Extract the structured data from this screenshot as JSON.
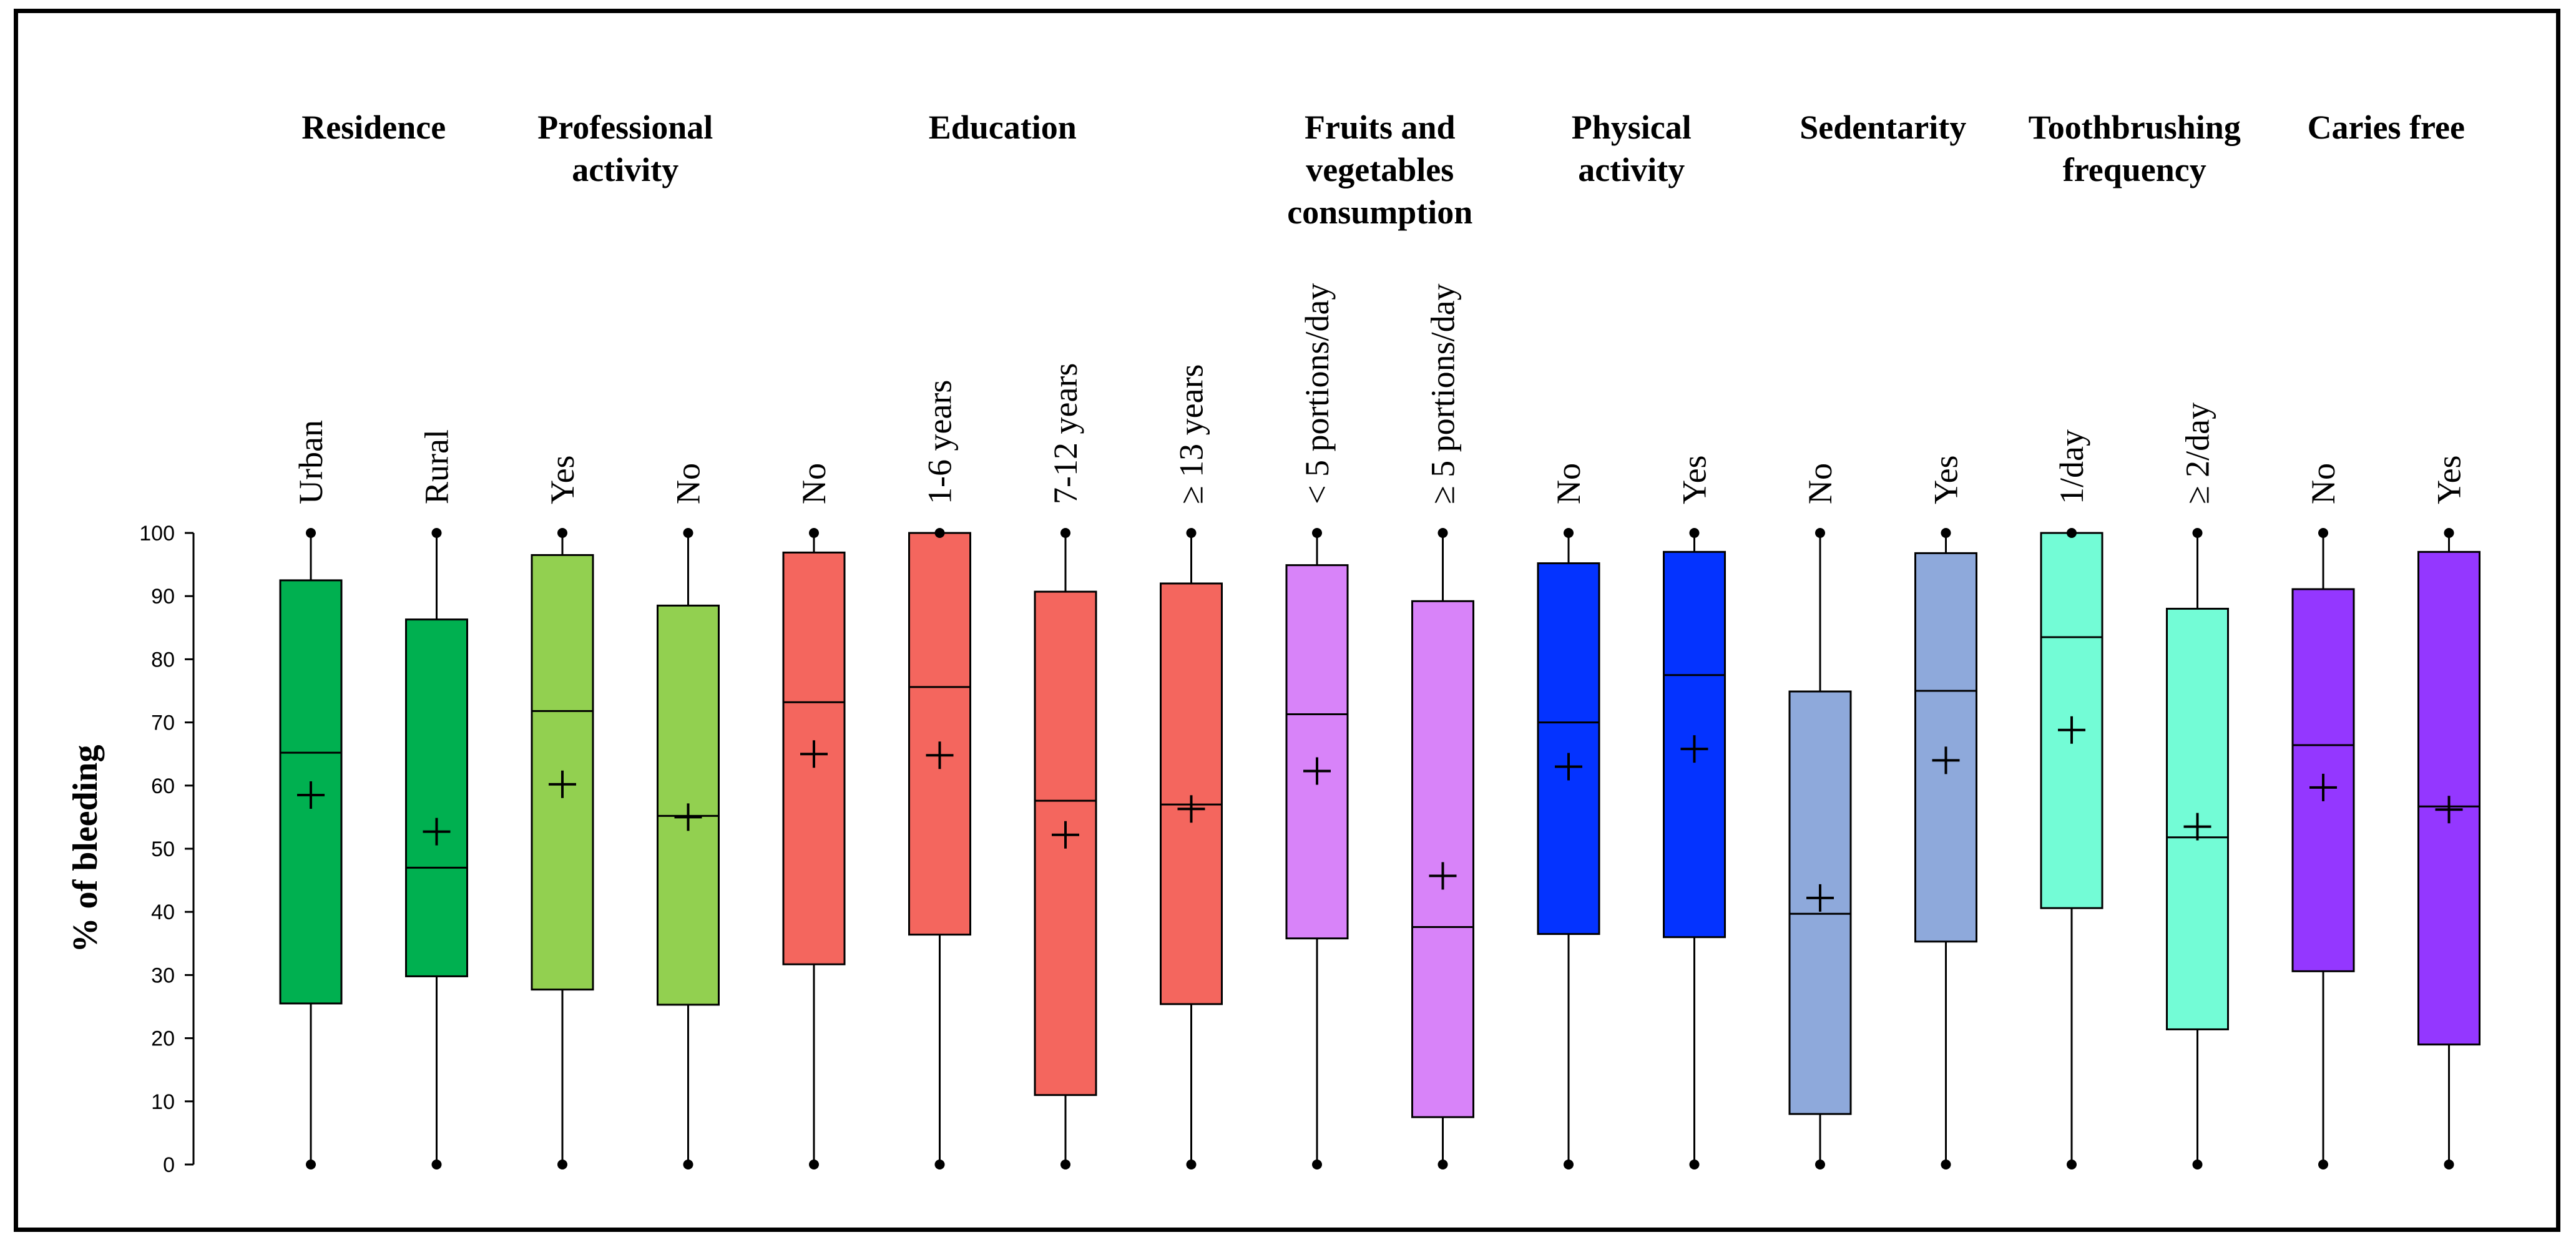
{
  "chart_data": {
    "type": "boxplot",
    "ylabel": "% of bleeding",
    "ylim": [
      0,
      100
    ],
    "yticks": [
      0,
      10,
      20,
      30,
      40,
      50,
      60,
      70,
      80,
      90,
      100
    ],
    "groups": [
      {
        "title": [
          "Residence"
        ],
        "categories": [
          {
            "label": "Urban",
            "color": "#00B050",
            "min": 0,
            "q1": 25.5,
            "median": 65.2,
            "q3": 92.5,
            "max": 100,
            "mean": 58.5
          },
          {
            "label": "Rural",
            "color": "#00B050",
            "min": 0,
            "q1": 29.8,
            "median": 47.0,
            "q3": 86.3,
            "max": 100,
            "mean": 52.7
          }
        ]
      },
      {
        "title": [
          "Professional",
          "activity"
        ],
        "categories": [
          {
            "label": "Yes",
            "color": "#92D050",
            "min": 0,
            "q1": 27.7,
            "median": 71.8,
            "q3": 96.5,
            "max": 100,
            "mean": 60.2
          },
          {
            "label": "No",
            "color": "#92D050",
            "min": 0,
            "q1": 25.3,
            "median": 55.2,
            "q3": 88.5,
            "max": 100,
            "mean": 55.0
          }
        ]
      },
      {
        "title": [
          "Education"
        ],
        "categories": [
          {
            "label": "No",
            "color": "#F4665E",
            "min": 0,
            "q1": 31.7,
            "median": 73.2,
            "q3": 96.9,
            "max": 100,
            "mean": 65.0
          },
          {
            "label": "1-6 years",
            "color": "#F4665E",
            "min": 0,
            "q1": 36.4,
            "median": 75.6,
            "q3": 100,
            "max": 100,
            "mean": 64.8
          },
          {
            "label": "7-12 years",
            "color": "#F4665E",
            "min": 0,
            "q1": 11.0,
            "median": 57.6,
            "q3": 90.7,
            "max": 100,
            "mean": 52.2
          },
          {
            "label": "≥ 13 years",
            "color": "#F4665E",
            "min": 0,
            "q1": 25.4,
            "median": 57.0,
            "q3": 92.0,
            "max": 100,
            "mean": 56.3
          }
        ]
      },
      {
        "title": [
          "Fruits and",
          "vegetables",
          "consumption"
        ],
        "categories": [
          {
            "label": "< 5 portions/day",
            "color": "#D883F9",
            "min": 0,
            "q1": 35.8,
            "median": 71.3,
            "q3": 94.9,
            "max": 100,
            "mean": 62.3
          },
          {
            "label": "≥ 5 portions/day",
            "color": "#D883F9",
            "min": 0,
            "q1": 7.5,
            "median": 37.6,
            "q3": 89.2,
            "max": 100,
            "mean": 45.7
          }
        ]
      },
      {
        "title": [
          "Physical",
          "activity"
        ],
        "categories": [
          {
            "label": "No",
            "color": "#0433FF",
            "min": 0,
            "q1": 36.5,
            "median": 70.0,
            "q3": 95.2,
            "max": 100,
            "mean": 63.0
          },
          {
            "label": "Yes",
            "color": "#0433FF",
            "min": 0,
            "q1": 36.0,
            "median": 77.5,
            "q3": 97.0,
            "max": 100,
            "mean": 65.8
          }
        ]
      },
      {
        "title": [
          "Sedentarity"
        ],
        "categories": [
          {
            "label": "No",
            "color": "#8EA9DB",
            "min": 0,
            "q1": 8.0,
            "median": 39.7,
            "q3": 74.9,
            "max": 100,
            "mean": 42.2
          },
          {
            "label": "Yes",
            "color": "#8EA9DB",
            "min": 0,
            "q1": 35.3,
            "median": 75.0,
            "q3": 96.8,
            "max": 100,
            "mean": 64.0
          }
        ]
      },
      {
        "title": [
          "Toothbrushing",
          "frequency"
        ],
        "categories": [
          {
            "label": "1/day",
            "color": "#73FCD6",
            "min": 0,
            "q1": 40.6,
            "median": 83.5,
            "q3": 100,
            "max": 100,
            "mean": 68.8
          },
          {
            "label": "≥ 2/day",
            "color": "#73FCD6",
            "min": 0,
            "q1": 21.4,
            "median": 51.8,
            "q3": 88.0,
            "max": 100,
            "mean": 53.5
          }
        ]
      },
      {
        "title": [
          "Caries free"
        ],
        "categories": [
          {
            "label": "No",
            "color": "#9437FF",
            "min": 0,
            "q1": 30.6,
            "median": 66.4,
            "q3": 91.1,
            "max": 100,
            "mean": 59.7
          },
          {
            "label": "Yes",
            "color": "#9437FF",
            "min": 0,
            "q1": 19.0,
            "median": 56.7,
            "q3": 97.0,
            "max": 100,
            "mean": 56.2
          }
        ]
      }
    ]
  }
}
